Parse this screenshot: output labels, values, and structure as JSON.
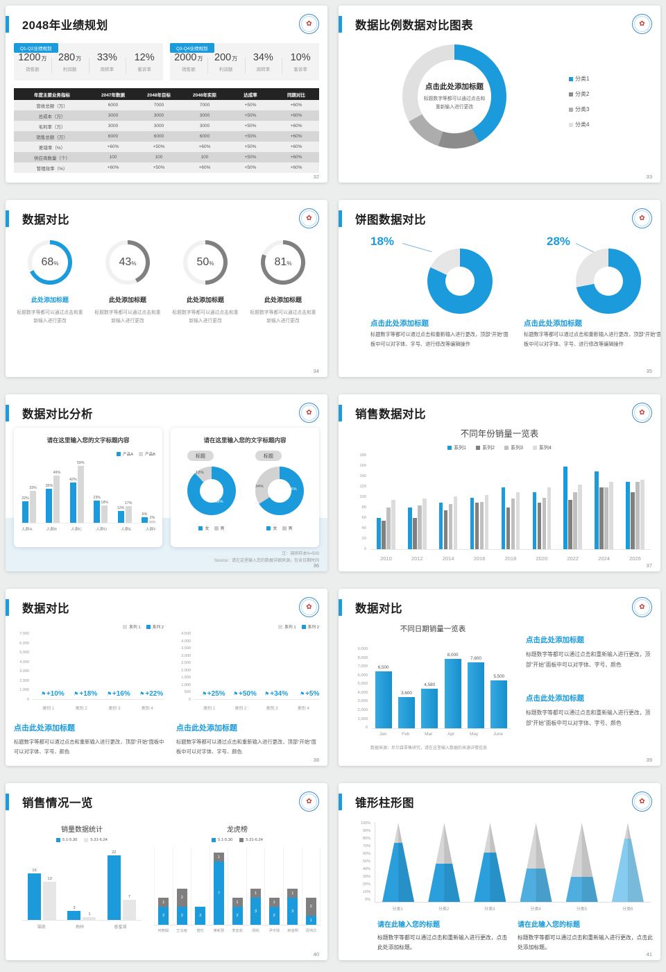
{
  "colors": {
    "accent": "#1B9BDB",
    "grayDark": "#7F7F7F",
    "grayMid": "#A6A6A6",
    "grayLight": "#D9D9D9"
  },
  "logo_glyph": "✿",
  "s32": {
    "title": "2048年业绩规划",
    "page": "32",
    "groups": [
      {
        "badge": "Q1-Q2业绩规划",
        "stats": [
          {
            "value": "1200",
            "unit": "万",
            "label": "销售额"
          },
          {
            "value": "280",
            "unit": "万",
            "label": "利润额"
          },
          {
            "value": "33%",
            "unit": "",
            "label": "周转率"
          },
          {
            "value": "12%",
            "unit": "",
            "label": "客诉率"
          }
        ]
      },
      {
        "badge": "Q3-Q4业绩规划",
        "stats": [
          {
            "value": "2000",
            "unit": "万",
            "label": "销售额"
          },
          {
            "value": "200",
            "unit": "万",
            "label": "利润额"
          },
          {
            "value": "34%",
            "unit": "",
            "label": "周转率"
          },
          {
            "value": "10%",
            "unit": "",
            "label": "客诉率"
          }
        ]
      }
    ],
    "table": {
      "headers": [
        "年度主要业务指标",
        "2047年数据",
        "2048年目标",
        "2048年实际",
        "达成率",
        "同期对比"
      ],
      "rows": [
        [
          "营收总额（万）",
          "6000",
          "7000",
          "7000",
          "+50%",
          "+60%"
        ],
        [
          "总成本（万）",
          "3000",
          "3000",
          "3000",
          "+50%",
          "+60%"
        ],
        [
          "毛利率（万）",
          "3000",
          "3000",
          "3000",
          "+50%",
          "+60%"
        ],
        [
          "销售总额（万）",
          "6000",
          "6000",
          "6000",
          "+50%",
          "+60%"
        ],
        [
          "差错率（%）",
          "+60%",
          "+50%",
          "+60%",
          "+50%",
          "+60%"
        ],
        [
          "供应商数量（个）",
          "100",
          "100",
          "100",
          "+50%",
          "+60%"
        ],
        [
          "管理效率（%）",
          "+60%",
          "+50%",
          "+60%",
          "+50%",
          "+60%"
        ]
      ]
    }
  },
  "s33": {
    "title": "数据比例数据对比图表",
    "page": "33",
    "center_title": "点击此处添加标题",
    "center_body": "标题数字等都可以通过点击和重新输入进行更改",
    "chart": {
      "type": "donut",
      "segments": [
        {
          "label": "分类1",
          "value": 42,
          "color": "#1B9BDB"
        },
        {
          "label": "分类2",
          "value": 13,
          "color": "#8C8C8C"
        },
        {
          "label": "分类3",
          "value": 12,
          "color": "#ADADAD"
        },
        {
          "label": "分类4",
          "value": 33,
          "color": "#E0E0E0"
        }
      ]
    }
  },
  "s34": {
    "title": "数据对比",
    "page": "34",
    "item_title": "此处添加标题",
    "caption": "标题数字等都可以通过点击和重新输入进行更改",
    "gauges": [
      {
        "value": 68,
        "color": "#1B9BDB",
        "title_color": "#1B9BDB"
      },
      {
        "value": 43,
        "color": "#808080",
        "title_color": "#333333"
      },
      {
        "value": 50,
        "color": "#808080",
        "title_color": "#333333"
      },
      {
        "value": 81,
        "color": "#808080",
        "title_color": "#333333"
      }
    ]
  },
  "s35": {
    "title": "饼图数据对比",
    "page": "35",
    "items": [
      {
        "pct_label": "18%",
        "value": 18,
        "block_title": "点击此处添加标题",
        "body": "标题数字等都可以通过点击和重新输入进行更改，顶部“开始”面板中可以对字体、字号、进行修改等编辑操作"
      },
      {
        "pct_label": "28%",
        "value": 28,
        "block_title": "点击此处添加标题",
        "body": "标题数字等都可以通过点击和重新输入进行更改，顶部“开始”面板中可以对字体、字号、进行修改等编辑操作"
      }
    ]
  },
  "s36": {
    "title": "数据对比分析",
    "page": "36",
    "left_card": {
      "chart_title": "请在这里输入您的文字标题内容",
      "legend": [
        {
          "label": "产品A",
          "color": "#1B9BDB"
        },
        {
          "label": "产品B",
          "color": "#D8D8D8"
        }
      ],
      "categories": [
        "人群A",
        "人群B",
        "人群C",
        "人群D",
        "人群E",
        "人群F"
      ],
      "series": [
        {
          "name": "产品A",
          "color": "#1B9BDB",
          "values": [
            22,
            35,
            42,
            23,
            12,
            6
          ]
        },
        {
          "name": "产品B",
          "color": "#D8D8D8",
          "values": [
            33,
            49,
            59,
            18,
            17,
            2
          ]
        }
      ],
      "ymax": 62
    },
    "right_card": {
      "chart_title": "请在这里输入您的文字标题内容",
      "donuts": [
        {
          "badge": "标题",
          "gray_pct": 12,
          "blue_pct": 88,
          "gray_label": "12%",
          "blue_label": "88%",
          "legend": [
            {
              "label": "女",
              "color": "#1B9BDB"
            },
            {
              "label": "男",
              "color": "#C9C9C9"
            }
          ]
        },
        {
          "badge": "标题",
          "gray_pct": 34,
          "blue_pct": 66,
          "gray_label": "34%",
          "blue_label": "66%",
          "legend": [
            {
              "label": "女",
              "color": "#1B9BDB"
            },
            {
              "label": "男",
              "color": "#C9C9C9"
            }
          ]
        }
      ]
    },
    "note": "注：调研样本N=500",
    "source": "Source：请在这里输入您的数据详细来源，包含日期时间"
  },
  "s37": {
    "title": "销售数据对比",
    "page": "37",
    "chart_title": "不同年份销量一览表",
    "years": [
      "2010",
      "2012",
      "2014",
      "2016",
      "2018",
      "2020",
      "2022",
      "2024",
      "2026"
    ],
    "yticks": [
      "180",
      "160",
      "140",
      "120",
      "100",
      "80",
      "60",
      "40",
      "20",
      "0"
    ],
    "ymax": 180,
    "series": [
      {
        "name": "系列1",
        "color": "#1B9BDB",
        "values": [
          60,
          80,
          90,
          100,
          120,
          110,
          160,
          150,
          130
        ]
      },
      {
        "name": "系列2",
        "color": "#808080",
        "values": [
          55,
          60,
          75,
          90,
          80,
          90,
          95,
          120,
          110
        ]
      },
      {
        "name": "系列3",
        "color": "#BFBFBF",
        "values": [
          80,
          85,
          88,
          92,
          98,
          100,
          110,
          120,
          130
        ]
      },
      {
        "name": "系列4",
        "color": "#DCDCDC",
        "values": [
          95,
          98,
          102,
          105,
          110,
          120,
          125,
          130,
          135
        ]
      }
    ]
  },
  "s38": {
    "title": "数据对比",
    "page": "38",
    "legend": [
      {
        "label": "系列 1",
        "color": "#DCDCDC"
      },
      {
        "label": "系列 2",
        "color": "#1B9BDB"
      }
    ],
    "panels": [
      {
        "yticks": [
          "7,000",
          "6,000",
          "5,000",
          "4,000",
          "3,000",
          "2,000",
          "1,000",
          "0"
        ],
        "ymax": 7000,
        "categories": [
          "类别 1",
          "类别 2",
          "类别 3",
          "类别 4"
        ],
        "series1": [
          3400,
          3700,
          3600,
          4300
        ],
        "series2": [
          4200,
          5300,
          4800,
          6200
        ],
        "deltas": [
          "+10%",
          "+18%",
          "+16%",
          "+22%"
        ],
        "block_title": "点击此处添加标题",
        "block_body": "标题数字等都可以通过点击和重新输入进行更改，顶部“开始”面板中可以对字体、字号、颜色"
      },
      {
        "yticks": [
          "4,500",
          "4,000",
          "3,500",
          "3,000",
          "2,500",
          "2,000",
          "1,500",
          "1,000",
          "500",
          "0"
        ],
        "ymax": 4500,
        "categories": [
          "类别 1",
          "类别 2",
          "类别 3",
          "类别 4"
        ],
        "series1": [
          2500,
          2250,
          1800,
          2800
        ],
        "series2": [
          3500,
          4200,
          3200,
          3200
        ],
        "deltas": [
          "+25%",
          "+50%",
          "+34%",
          "+5%"
        ],
        "block_title": "点击此处添加标题",
        "block_body": "标题数字等都可以通过点击和重新输入进行更改，顶部“开始”面板中可以对字体、字号、颜色"
      }
    ]
  },
  "s39": {
    "title": "数据对比",
    "page": "39",
    "chart_title": "不同日期销量一览表",
    "months": [
      "Jan",
      "Feb",
      "Mar",
      "Apr",
      "May",
      "June"
    ],
    "values": [
      6500,
      3600,
      4580,
      8000,
      7600,
      5500
    ],
    "value_labels": [
      "6,500",
      "3,600",
      "4,580",
      "8,000",
      "7,600",
      "5,500"
    ],
    "yticks": [
      "9,000",
      "8,000",
      "7,000",
      "6,000",
      "5,000",
      "4,000",
      "3,000",
      "2,000",
      "1,000",
      "0"
    ],
    "ymax": 9000,
    "note": "数据来源：尼尔森零售研究，请在这里输入数据的来源详情信息",
    "blocks": [
      {
        "title": "点击此处添加标题",
        "body": "标题数字等都可以通过点击和重新输入进行更改，顶部“开始”面板中可以对字体、字号、颜色"
      },
      {
        "title": "点击此处添加标题",
        "body": "标题数字等都可以通过点击和重新输入进行更改，顶部“开始”面板中可以对字体、字号、颜色"
      }
    ]
  },
  "s40": {
    "title": "销售情况一览",
    "page": "40",
    "left": {
      "chart_title": "销量数据统计",
      "legend": [
        {
          "label": "5.1-5.30",
          "color": "#1B9BDB"
        },
        {
          "label": "5.31-6.24",
          "color": "#E6E6E6"
        }
      ],
      "categories": [
        "福田",
        "梅林",
        "香蜜湖"
      ],
      "series1": [
        16,
        3,
        22
      ],
      "series2": [
        13,
        1,
        7
      ],
      "ymax": 24
    },
    "right": {
      "chart_title": "龙虎榜",
      "legend": [
        {
          "label": "5.1-5.30",
          "color": "#1B9BDB"
        },
        {
          "label": "5.31-6.24",
          "color": "#7F7F7F"
        }
      ],
      "items": [
        {
          "name": "何丽娟",
          "blue": 2,
          "gray": 1
        },
        {
          "name": "王冯南",
          "blue": 2,
          "gray": 2
        },
        {
          "name": "普珍",
          "blue": 2,
          "gray": 0
        },
        {
          "name": "黄新慧",
          "blue": 7,
          "gray": 1
        },
        {
          "name": "李亚茹",
          "blue": 2,
          "gray": 1
        },
        {
          "name": "杨松",
          "blue": 3,
          "gray": 1
        },
        {
          "name": "尹中球",
          "blue": 2,
          "gray": 1
        },
        {
          "name": "钟迪明",
          "blue": 3,
          "gray": 1
        },
        {
          "name": "周伟华",
          "blue": 1,
          "gray": 2
        }
      ]
    }
  },
  "s41": {
    "title": "锥形柱形图",
    "page": "41",
    "yticks": [
      "100%",
      "90%",
      "80%",
      "70%",
      "60%",
      "50%",
      "40%",
      "30%",
      "20%",
      "10%",
      "0%"
    ],
    "cones": [
      {
        "label": "分类1",
        "fill": 75,
        "color": "#2B9FDB"
      },
      {
        "label": "分类2",
        "fill": 48,
        "color": "#2B9FDB"
      },
      {
        "label": "分类3",
        "fill": 62,
        "color": "#2B9FDB"
      },
      {
        "label": "分类4",
        "fill": 42,
        "color": "#4FAEE0"
      },
      {
        "label": "分类5",
        "fill": 32,
        "color": "#4FAEE0"
      },
      {
        "label": "分类6",
        "fill": 80,
        "color": "#85CCF0"
      }
    ],
    "blocks": [
      {
        "title": "请在此输入您的标题",
        "body": "标题数字等都可以通过点击和重新输入进行更改，点击此处添加标题。"
      },
      {
        "title": "请在此输入您的标题",
        "body": "标题数字等都可以通过点击和重新输入进行更改，点击此处添加标题。"
      }
    ]
  }
}
